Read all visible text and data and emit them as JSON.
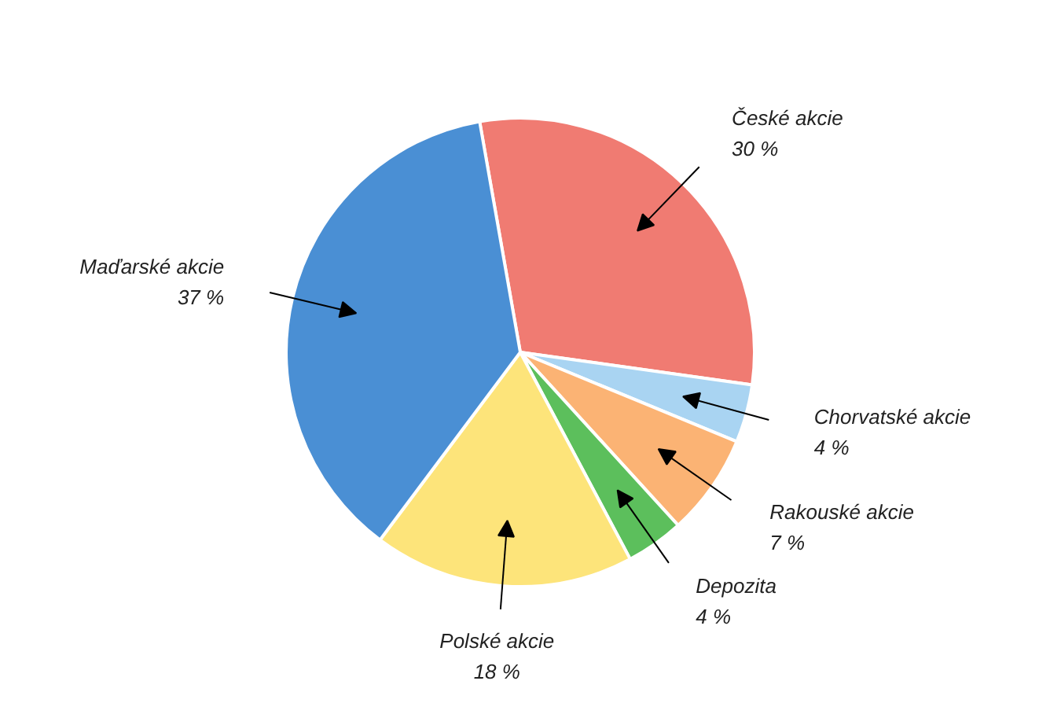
{
  "chart_data": {
    "type": "pie",
    "categories": [
      "České akcie",
      "Chorvatské akcie",
      "Rakouské akcie",
      "Depozita",
      "Polské akcie",
      "Maďarské akcie"
    ],
    "values": [
      30,
      4,
      7,
      4,
      18,
      37
    ],
    "value_labels": [
      "30 %",
      "4 %",
      "7 %",
      "4 %",
      "18 %",
      "37 %"
    ],
    "colors": [
      "#f07b72",
      "#a9d4f2",
      "#fbb374",
      "#5cbf5c",
      "#fde47a",
      "#4a8fd4"
    ]
  }
}
